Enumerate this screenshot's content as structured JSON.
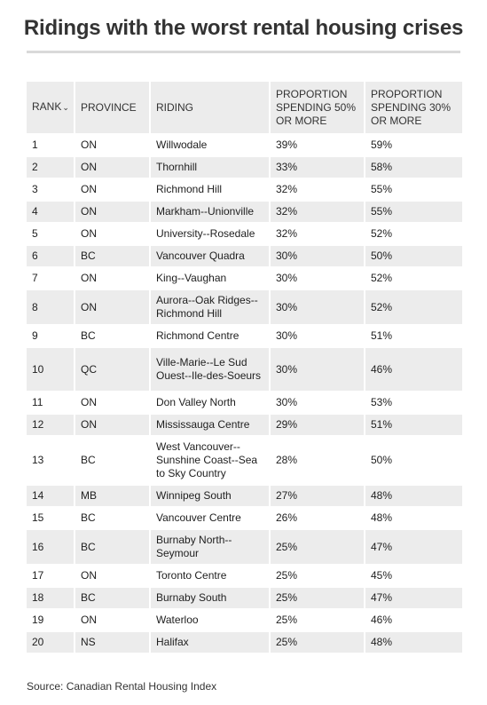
{
  "title": "Ridings with the worst rental housing crises",
  "columns": {
    "rank": "RANK",
    "rank_sort_icon": "chevron-down",
    "province": "PROVINCE",
    "riding": "RIDING",
    "p50": "PROPORTION SPENDING 50% OR MORE",
    "p30": "PROPORTION SPENDING 30% OR MORE"
  },
  "rows": [
    {
      "rank": "1",
      "province": "ON",
      "riding": "Willwodale",
      "p50": "39%",
      "p30": "59%"
    },
    {
      "rank": "2",
      "province": "ON",
      "riding": "Thornhill",
      "p50": "33%",
      "p30": "58%"
    },
    {
      "rank": "3",
      "province": "ON",
      "riding": "Richmond Hill",
      "p50": "32%",
      "p30": "55%"
    },
    {
      "rank": "4",
      "province": "ON",
      "riding": "Markham--Unionville",
      "p50": "32%",
      "p30": "55%"
    },
    {
      "rank": "5",
      "province": "ON",
      "riding": "University--Rosedale",
      "p50": "32%",
      "p30": "52%"
    },
    {
      "rank": "6",
      "province": "BC",
      "riding": "Vancouver Quadra",
      "p50": "30%",
      "p30": "50%"
    },
    {
      "rank": "7",
      "province": "ON",
      "riding": "King--Vaughan",
      "p50": "30%",
      "p30": "52%"
    },
    {
      "rank": "8",
      "province": "ON",
      "riding": "Aurora--Oak Ridges--Richmond Hill",
      "p50": "30%",
      "p30": "52%"
    },
    {
      "rank": "9",
      "province": "BC",
      "riding": "Richmond Centre",
      "p50": "30%",
      "p30": "51%"
    },
    {
      "rank": "10",
      "province": "QC",
      "riding": "Ville-Marie--Le Sud Ouest--Ile-des-Soeurs",
      "p50": "30%",
      "p30": "46%"
    },
    {
      "rank": "11",
      "province": "ON",
      "riding": "Don Valley North",
      "p50": "30%",
      "p30": "53%"
    },
    {
      "rank": "12",
      "province": "ON",
      "riding": "Mississauga Centre",
      "p50": "29%",
      "p30": "51%"
    },
    {
      "rank": "13",
      "province": "BC",
      "riding": "West Vancouver--Sunshine Coast--Sea to Sky Country",
      "p50": "28%",
      "p30": "50%"
    },
    {
      "rank": "14",
      "province": "MB",
      "riding": "Winnipeg South",
      "p50": "27%",
      "p30": "48%"
    },
    {
      "rank": "15",
      "province": "BC",
      "riding": "Vancouver Centre",
      "p50": "26%",
      "p30": "48%"
    },
    {
      "rank": "16",
      "province": "BC",
      "riding": "Burnaby North--Seymour",
      "p50": "25%",
      "p30": "47%"
    },
    {
      "rank": "17",
      "province": "ON",
      "riding": "Toronto Centre",
      "p50": "25%",
      "p30": "45%"
    },
    {
      "rank": "18",
      "province": "BC",
      "riding": "Burnaby South",
      "p50": "25%",
      "p30": "47%"
    },
    {
      "rank": "19",
      "province": "ON",
      "riding": "Waterloo",
      "p50": "25%",
      "p30": "46%"
    },
    {
      "rank": "20",
      "province": "NS",
      "riding": "Halifax",
      "p50": "25%",
      "p30": "48%"
    }
  ],
  "source": "Source: Canadian Rental Housing Index",
  "colors": {
    "header_bg": "#ececec",
    "stripe_bg": "#ececec",
    "title": "#333333"
  }
}
